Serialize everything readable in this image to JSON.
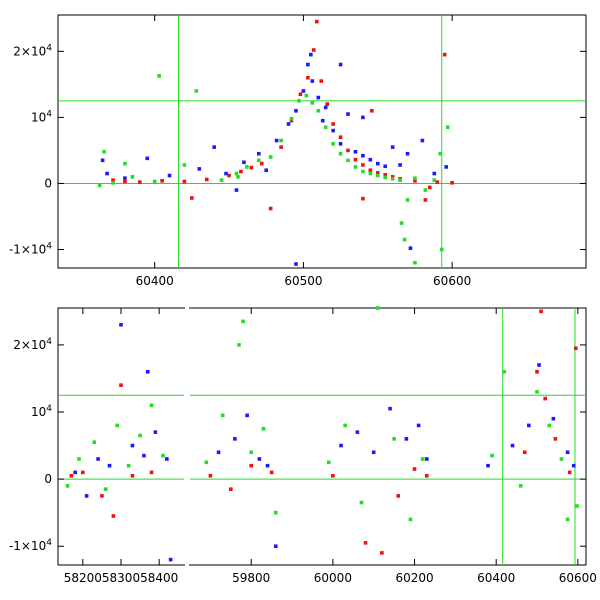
{
  "colors": {
    "series_blue": "#1a1aff",
    "series_red": "#ee1111",
    "series_green": "#22dd22",
    "reference_lines": "#22dd22",
    "axes": "#000000",
    "background": "#ffffff"
  },
  "chart_data": [
    {
      "type": "scatter",
      "title": "",
      "xlabel": "",
      "ylabel": "",
      "xlim": [
        60335,
        60690
      ],
      "ylim": [
        -12800,
        25500
      ],
      "grid": false,
      "legend": "none",
      "x_ticks": [
        {
          "value": 60400,
          "label": "60400"
        },
        {
          "value": 60500,
          "label": "60500"
        },
        {
          "value": 60600,
          "label": "60600"
        }
      ],
      "y_ticks": [
        {
          "value": -10000,
          "label": "-1×10",
          "sup": "4"
        },
        {
          "value": 0,
          "label": "0",
          "sup": ""
        },
        {
          "value": 10000,
          "label": "10",
          "sup": "4"
        },
        {
          "value": 20000,
          "label": "2×10",
          "sup": "4"
        }
      ],
      "reference_lines": {
        "vertical": [
          60416,
          60593
        ],
        "horizontal": [
          0,
          12500
        ]
      },
      "series": [
        {
          "color": "blue",
          "points": [
            [
              60365,
              3500
            ],
            [
              60368,
              1500
            ],
            [
              60380,
              800
            ],
            [
              60395,
              3800
            ],
            [
              60410,
              1200
            ],
            [
              60430,
              2200
            ],
            [
              60440,
              5500
            ],
            [
              60448,
              1500
            ],
            [
              60455,
              -1000
            ],
            [
              60460,
              3200
            ],
            [
              60470,
              4500
            ],
            [
              60475,
              2000
            ],
            [
              60482,
              6500
            ],
            [
              60490,
              9000
            ],
            [
              60495,
              11000
            ],
            [
              60500,
              14000
            ],
            [
              60503,
              18000
            ],
            [
              60506,
              15500
            ],
            [
              60510,
              13000
            ],
            [
              60513,
              9500
            ],
            [
              60515,
              11500
            ],
            [
              60520,
              8000
            ],
            [
              60525,
              6000
            ],
            [
              60530,
              10500
            ],
            [
              60535,
              4800
            ],
            [
              60540,
              4200
            ],
            [
              60545,
              3600
            ],
            [
              60550,
              3000
            ],
            [
              60555,
              2600
            ],
            [
              60560,
              5500
            ],
            [
              60565,
              2800
            ],
            [
              60570,
              4500
            ],
            [
              60580,
              6500
            ],
            [
              60588,
              1500
            ],
            [
              60596,
              2500
            ],
            [
              60540,
              10000
            ],
            [
              60572,
              -9800
            ],
            [
              60495,
              -12200
            ],
            [
              60525,
              18000
            ],
            [
              60505,
              19500
            ]
          ]
        },
        {
          "color": "red",
          "points": [
            [
              60372,
              500
            ],
            [
              60380,
              300
            ],
            [
              60390,
              200
            ],
            [
              60405,
              400
            ],
            [
              60420,
              300
            ],
            [
              60425,
              -2200
            ],
            [
              60435,
              600
            ],
            [
              60450,
              1200
            ],
            [
              60458,
              1800
            ],
            [
              60465,
              2400
            ],
            [
              60472,
              3000
            ],
            [
              60478,
              -3800
            ],
            [
              60485,
              5500
            ],
            [
              60492,
              9500
            ],
            [
              60498,
              13500
            ],
            [
              60503,
              16000
            ],
            [
              60507,
              20200
            ],
            [
              60509,
              24500
            ],
            [
              60512,
              15500
            ],
            [
              60516,
              12000
            ],
            [
              60520,
              9000
            ],
            [
              60525,
              7000
            ],
            [
              60530,
              5000
            ],
            [
              60535,
              3600
            ],
            [
              60540,
              2800
            ],
            [
              60545,
              2000
            ],
            [
              60550,
              1600
            ],
            [
              60555,
              1300
            ],
            [
              60560,
              1000
            ],
            [
              60565,
              700
            ],
            [
              60575,
              400
            ],
            [
              60585,
              -600
            ],
            [
              60590,
              200
            ],
            [
              60595,
              19500
            ],
            [
              60546,
              11000
            ],
            [
              60582,
              -2500
            ],
            [
              60540,
              -2300
            ],
            [
              60600,
              100
            ]
          ]
        },
        {
          "color": "green",
          "points": [
            [
              60363,
              -300
            ],
            [
              60366,
              4800
            ],
            [
              60372,
              100
            ],
            [
              60380,
              3000
            ],
            [
              60385,
              1000
            ],
            [
              60400,
              300
            ],
            [
              60403,
              16300
            ],
            [
              60420,
              2800
            ],
            [
              60428,
              14000
            ],
            [
              60445,
              500
            ],
            [
              60455,
              1500
            ],
            [
              60462,
              2500
            ],
            [
              60470,
              3500
            ],
            [
              60478,
              4000
            ],
            [
              60485,
              6500
            ],
            [
              60492,
              9800
            ],
            [
              60497,
              12500
            ],
            [
              60502,
              13300
            ],
            [
              60506,
              12200
            ],
            [
              60510,
              11000
            ],
            [
              60515,
              8500
            ],
            [
              60520,
              6000
            ],
            [
              60525,
              4500
            ],
            [
              60530,
              3500
            ],
            [
              60535,
              2500
            ],
            [
              60540,
              1800
            ],
            [
              60545,
              1500
            ],
            [
              60550,
              1200
            ],
            [
              60555,
              900
            ],
            [
              60560,
              700
            ],
            [
              60565,
              500
            ],
            [
              60570,
              -2500
            ],
            [
              60575,
              800
            ],
            [
              60582,
              -1000
            ],
            [
              60588,
              500
            ],
            [
              60592,
              4500
            ],
            [
              60597,
              8500
            ],
            [
              60566,
              -6000
            ],
            [
              60568,
              -8500
            ],
            [
              60575,
              -12000
            ],
            [
              60593,
              -10000
            ],
            [
              60456,
              1000
            ]
          ]
        }
      ]
    },
    {
      "type": "scatter",
      "title": "",
      "xlabel": "",
      "ylabel": "",
      "broken_x_axis": true,
      "xlim_segments": [
        [
          58135,
          58465
        ],
        [
          59650,
          60620
        ]
      ],
      "ylim": [
        -12800,
        25500
      ],
      "grid": false,
      "legend": "none",
      "x_ticks": [
        {
          "value": 58200,
          "label": "58200"
        },
        {
          "value": 58300,
          "label": "58300"
        },
        {
          "value": 58400,
          "label": "58400"
        },
        {
          "value": 59800,
          "label": "59800"
        },
        {
          "value": 60000,
          "label": "60000"
        },
        {
          "value": 60200,
          "label": "60200"
        },
        {
          "value": 60400,
          "label": "60400"
        },
        {
          "value": 60600,
          "label": "60600"
        }
      ],
      "y_ticks": [
        {
          "value": -10000,
          "label": "-1×10",
          "sup": "4"
        },
        {
          "value": 0,
          "label": "0",
          "sup": ""
        },
        {
          "value": 10000,
          "label": "10",
          "sup": "4"
        },
        {
          "value": 20000,
          "label": "2×10",
          "sup": "4"
        }
      ],
      "reference_lines": {
        "vertical": [
          60416,
          60593
        ],
        "horizontal": [
          0,
          12500
        ]
      },
      "series": [
        {
          "color": "blue",
          "points": [
            [
              58180,
              1000
            ],
            [
              58210,
              -2500
            ],
            [
              58240,
              3000
            ],
            [
              58270,
              2000
            ],
            [
              58300,
              23000
            ],
            [
              58330,
              5000
            ],
            [
              58360,
              3500
            ],
            [
              58370,
              16000
            ],
            [
              58390,
              7000
            ],
            [
              58420,
              3000
            ],
            [
              58430,
              -12000
            ],
            [
              59720,
              4000
            ],
            [
              59760,
              6000
            ],
            [
              59790,
              9500
            ],
            [
              59820,
              3000
            ],
            [
              59840,
              2000
            ],
            [
              59860,
              -10000
            ],
            [
              60020,
              5000
            ],
            [
              60060,
              7000
            ],
            [
              60100,
              4000
            ],
            [
              60140,
              10500
            ],
            [
              60180,
              6000
            ],
            [
              60210,
              8000
            ],
            [
              60230,
              3000
            ],
            [
              60380,
              2000
            ],
            [
              60440,
              5000
            ],
            [
              60480,
              8000
            ],
            [
              60505,
              17000
            ],
            [
              60540,
              9000
            ],
            [
              60575,
              4000
            ],
            [
              60590,
              2000
            ]
          ]
        },
        {
          "color": "red",
          "points": [
            [
              58170,
              500
            ],
            [
              58200,
              1000
            ],
            [
              58250,
              -2500
            ],
            [
              58280,
              -5500
            ],
            [
              58300,
              14000
            ],
            [
              58330,
              500
            ],
            [
              58380,
              1000
            ],
            [
              59700,
              500
            ],
            [
              59750,
              -1500
            ],
            [
              59800,
              2000
            ],
            [
              59850,
              1000
            ],
            [
              60000,
              500
            ],
            [
              60080,
              -9500
            ],
            [
              60120,
              -11000
            ],
            [
              60160,
              -2500
            ],
            [
              60200,
              1500
            ],
            [
              60230,
              500
            ],
            [
              60470,
              4000
            ],
            [
              60500,
              16000
            ],
            [
              60510,
              25000
            ],
            [
              60520,
              12000
            ],
            [
              60545,
              6000
            ],
            [
              60580,
              1000
            ],
            [
              60595,
              19500
            ]
          ]
        },
        {
          "color": "green",
          "points": [
            [
              58160,
              -1000
            ],
            [
              58190,
              3000
            ],
            [
              58230,
              5500
            ],
            [
              58260,
              -1500
            ],
            [
              58290,
              8000
            ],
            [
              58320,
              2000
            ],
            [
              58350,
              6500
            ],
            [
              58380,
              11000
            ],
            [
              58410,
              3500
            ],
            [
              59690,
              2500
            ],
            [
              59730,
              9500
            ],
            [
              59770,
              20000
            ],
            [
              59780,
              23500
            ],
            [
              59800,
              4000
            ],
            [
              59830,
              7500
            ],
            [
              59860,
              -5000
            ],
            [
              59990,
              2500
            ],
            [
              60030,
              8000
            ],
            [
              60070,
              -3500
            ],
            [
              60110,
              25500
            ],
            [
              60150,
              6000
            ],
            [
              60190,
              -6000
            ],
            [
              60220,
              3000
            ],
            [
              60390,
              3500
            ],
            [
              60420,
              16000
            ],
            [
              60460,
              -1000
            ],
            [
              60500,
              13000
            ],
            [
              60530,
              8000
            ],
            [
              60560,
              3000
            ],
            [
              60575,
              -6000
            ],
            [
              60598,
              -4000
            ]
          ]
        }
      ]
    }
  ]
}
